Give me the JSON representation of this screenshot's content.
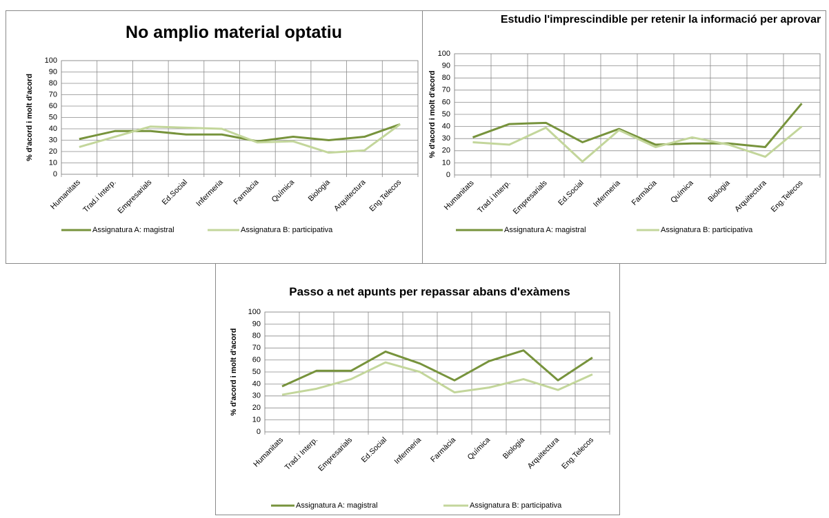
{
  "chart_data": [
    {
      "type": "line",
      "title": "No amplio material optatiu",
      "y_label": "% d'acord i molt d'acord",
      "categories": [
        "Humanitats",
        "Trad.i Interp.",
        "Empresarials",
        "Ed.Social",
        "Infermeria",
        "Farmàcia",
        "Química",
        "Biologia",
        "Arquitectura",
        "Eng.Telecos"
      ],
      "series": [
        {
          "name": "Assignatura A: magistral",
          "color": "#77933c",
          "values": [
            31,
            38,
            38,
            35,
            35,
            29,
            33,
            30,
            33,
            44
          ]
        },
        {
          "name": "Assignatura B: participativa",
          "color": "#c3d69b",
          "values": [
            24,
            33,
            42,
            41,
            40,
            28,
            29,
            19,
            21,
            44
          ]
        }
      ],
      "ylim": [
        0,
        100
      ],
      "yticks": [
        0,
        10,
        20,
        30,
        40,
        50,
        60,
        70,
        80,
        90,
        100
      ],
      "grid": true,
      "legend": "bottom"
    },
    {
      "type": "line",
      "title": "Estudio l'imprescindible per retenir la informació per aprovar",
      "y_label": "% d'acord i molt d'acord",
      "categories": [
        "Humanitats",
        "Trad.i Interp.",
        "Empresarials",
        "Ed.Social",
        "Infermeria",
        "Farmàcia",
        "Química",
        "Biologia",
        "Arquitectura",
        "Eng.Telecos"
      ],
      "series": [
        {
          "name": "Assignatura A: magistral",
          "color": "#77933c",
          "values": [
            31,
            42,
            43,
            27,
            38,
            25,
            26,
            26,
            23,
            59
          ]
        },
        {
          "name": "Assignatura B: participativa",
          "color": "#c3d69b",
          "values": [
            27,
            25,
            39,
            11,
            37,
            23,
            31,
            25,
            15,
            40
          ]
        }
      ],
      "ylim": [
        0,
        100
      ],
      "yticks": [
        0,
        10,
        20,
        30,
        40,
        50,
        60,
        70,
        80,
        90,
        100
      ],
      "grid": true,
      "legend": "bottom"
    },
    {
      "type": "line",
      "title": "Passo a net apunts per repassar abans d'exàmens",
      "y_label": "% d'acord i molt d'acord",
      "categories": [
        "Humanitats",
        "Trad.i Interp.",
        "Empresarials",
        "Ed.Social",
        "Infermeria",
        "Farmàcia",
        "Química",
        "Biologia",
        "Arquitectura",
        "Eng.Telecos"
      ],
      "series": [
        {
          "name": "Assignatura A: magistral",
          "color": "#77933c",
          "values": [
            38,
            51,
            51,
            67,
            57,
            43,
            59,
            68,
            43,
            62
          ]
        },
        {
          "name": "Assignatura B: participativa",
          "color": "#c3d69b",
          "values": [
            31,
            36,
            44,
            58,
            50,
            33,
            37,
            44,
            35,
            48
          ]
        }
      ],
      "ylim": [
        0,
        100
      ],
      "yticks": [
        0,
        10,
        20,
        30,
        40,
        50,
        60,
        70,
        80,
        90,
        100
      ],
      "grid": true,
      "legend": "bottom"
    }
  ]
}
